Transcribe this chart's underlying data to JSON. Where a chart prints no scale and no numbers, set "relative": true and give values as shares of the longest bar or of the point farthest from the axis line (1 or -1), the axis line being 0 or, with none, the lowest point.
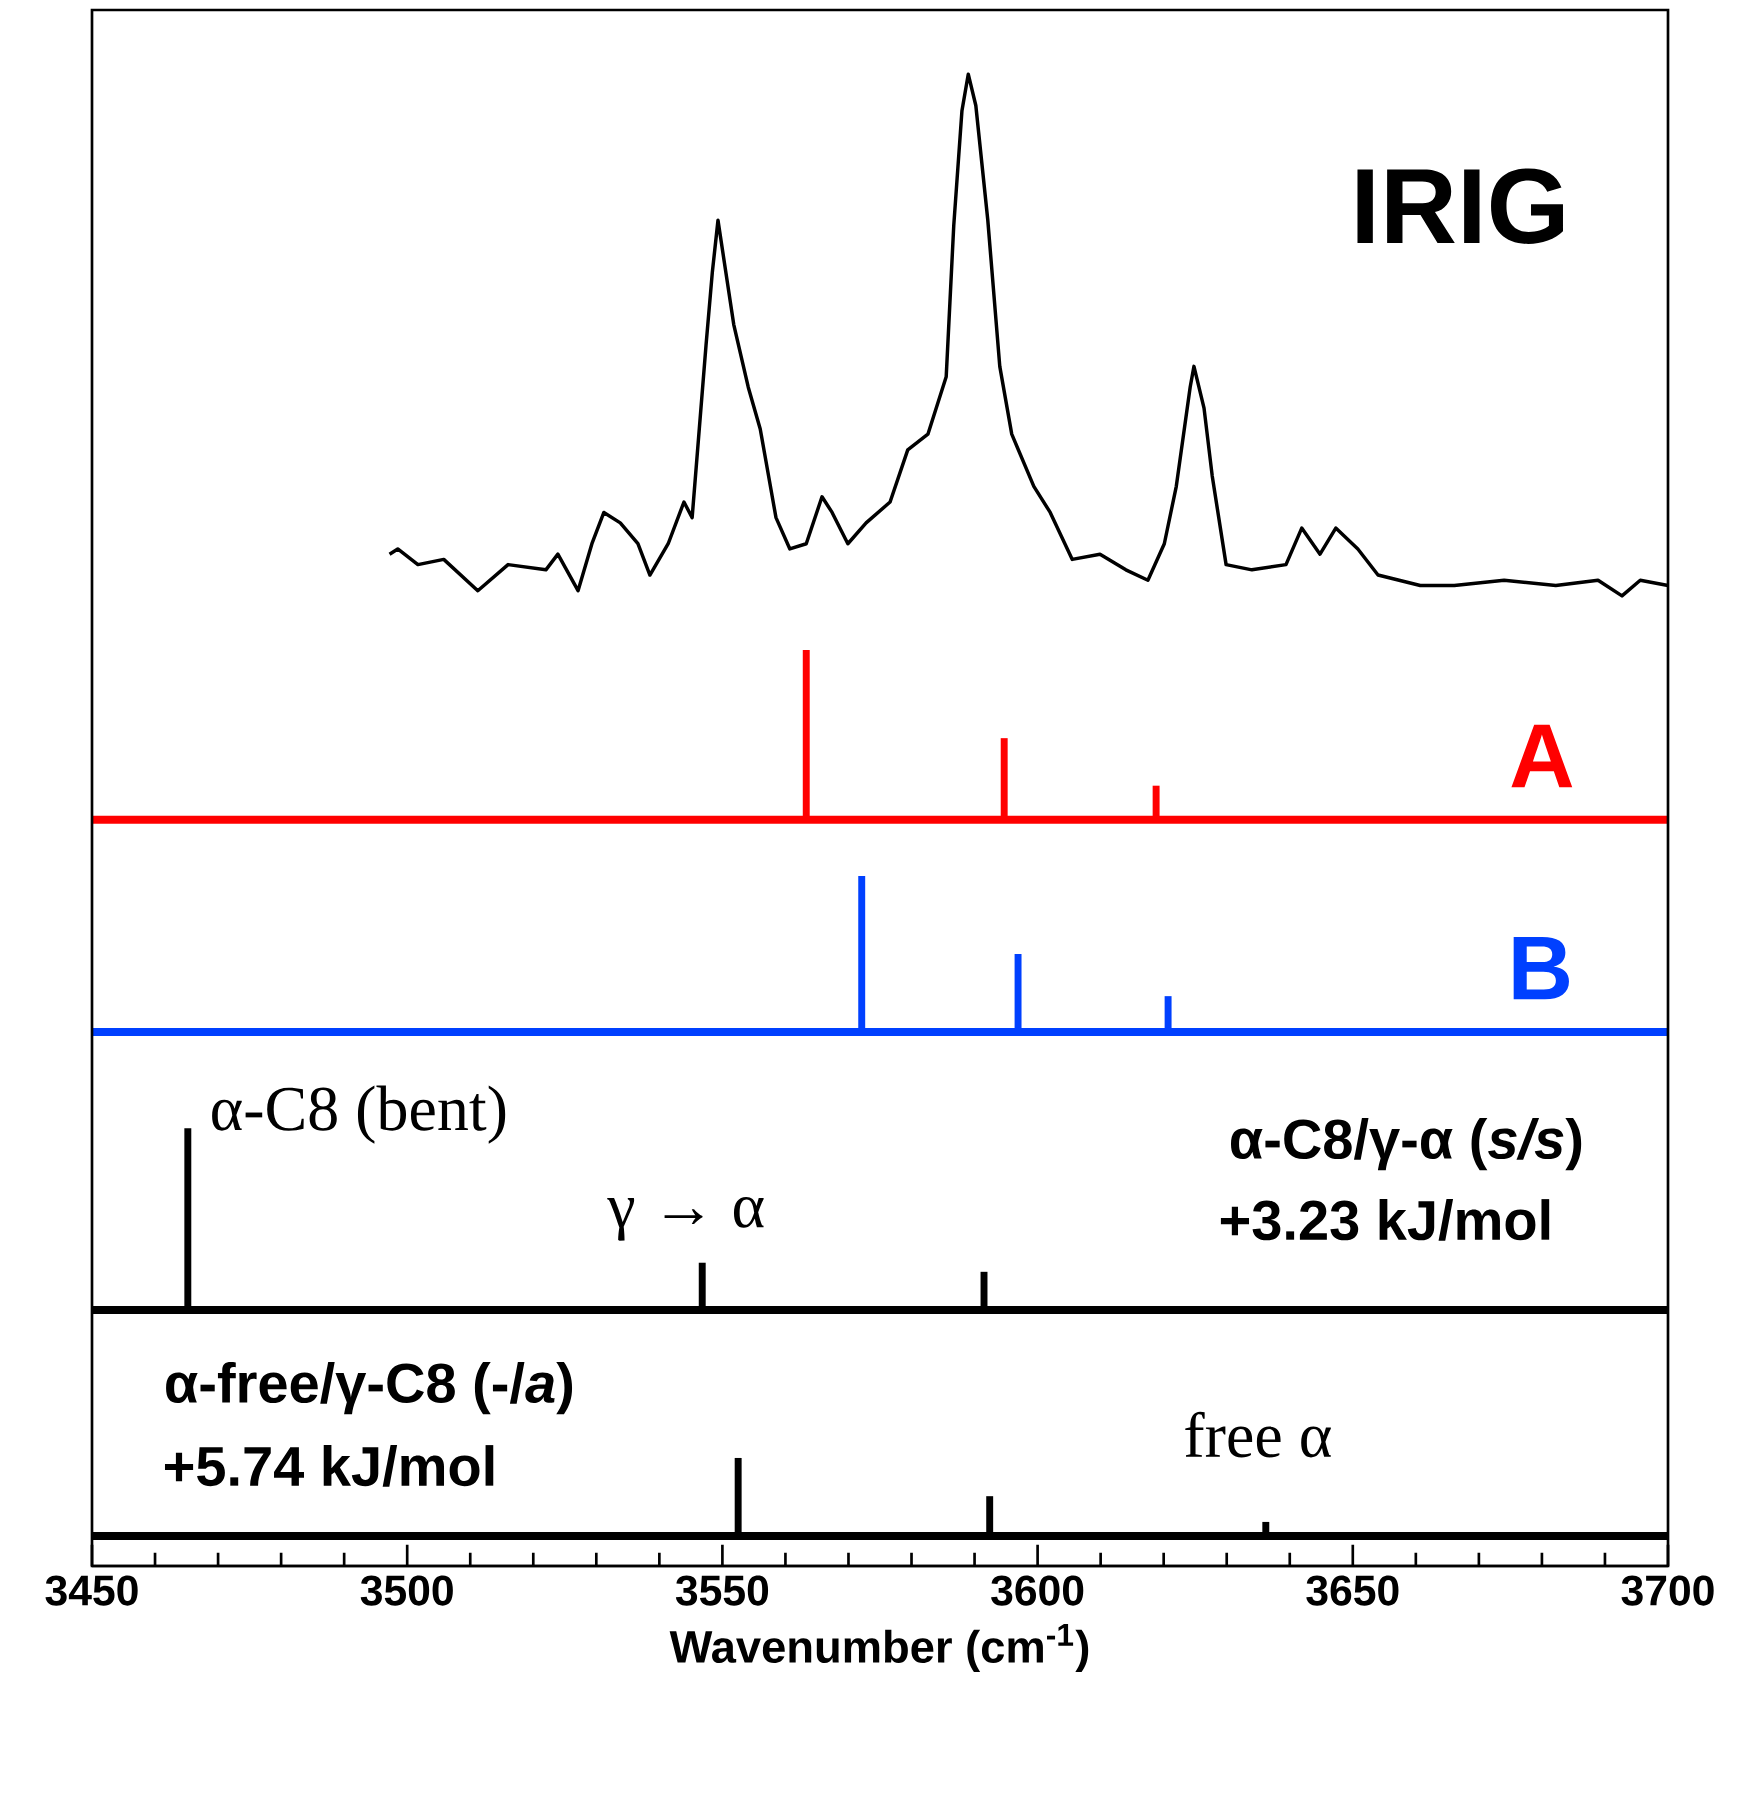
{
  "chart_data": [
    {
      "type": "line",
      "relative": true,
      "xlim": [
        3450,
        3700
      ],
      "tick_labels": false,
      "series": [
        {
          "name": "IRIG",
          "color": "#000000",
          "x": [
            3497.2,
            3498.5,
            3501.7,
            3505.8,
            3511.2,
            3516.0,
            3522.0,
            3523.9,
            3527.1,
            3529.3,
            3531.2,
            3533.8,
            3536.6,
            3538.5,
            3541.4,
            3543.9,
            3545.2,
            3547.4,
            3548.4,
            3549.3,
            3550.3,
            3551.8,
            3554.1,
            3556.0,
            3558.5,
            3560.7,
            3563.3,
            3565.8,
            3567.4,
            3569.9,
            3572.8,
            3576.6,
            3579.4,
            3582.6,
            3585.5,
            3586.7,
            3588.0,
            3589.0,
            3590.2,
            3592.1,
            3594.0,
            3595.9,
            3599.4,
            3602.0,
            3605.5,
            3609.9,
            3614.0,
            3617.5,
            3620.1,
            3622.0,
            3624.2,
            3624.8,
            3626.4,
            3627.7,
            3629.9,
            3634.0,
            3639.4,
            3641.9,
            3644.8,
            3647.3,
            3650.8,
            3654.0,
            3660.7,
            3666.1,
            3674.0,
            3682.2,
            3688.9,
            3692.7,
            3695.6,
            3700.0
          ],
          "values": [
            0.08,
            0.09,
            0.06,
            0.07,
            0.01,
            0.06,
            0.05,
            0.08,
            0.01,
            0.1,
            0.16,
            0.14,
            0.1,
            0.04,
            0.1,
            0.18,
            0.15,
            0.48,
            0.62,
            0.72,
            0.64,
            0.52,
            0.4,
            0.32,
            0.15,
            0.09,
            0.1,
            0.19,
            0.16,
            0.1,
            0.14,
            0.18,
            0.28,
            0.31,
            0.42,
            0.71,
            0.93,
            1.0,
            0.94,
            0.72,
            0.44,
            0.31,
            0.21,
            0.16,
            0.07,
            0.08,
            0.05,
            0.03,
            0.1,
            0.21,
            0.4,
            0.44,
            0.36,
            0.23,
            0.06,
            0.05,
            0.06,
            0.13,
            0.08,
            0.13,
            0.09,
            0.04,
            0.02,
            0.02,
            0.03,
            0.02,
            0.03,
            0.0,
            0.03,
            0.02
          ]
        }
      ]
    },
    {
      "type": "bar",
      "relative": true,
      "xlim": [
        3450,
        3700
      ],
      "tick_labels": false,
      "x": [
        3563.3,
        3594.7,
        3618.8
      ],
      "series": [
        {
          "name": "A",
          "color": "#ff0000",
          "values": [
            1,
            0.48,
            0.2
          ]
        }
      ]
    },
    {
      "type": "bar",
      "relative": true,
      "xlim": [
        3450,
        3700
      ],
      "tick_labels": false,
      "x": [
        3572.1,
        3596.9,
        3620.7
      ],
      "series": [
        {
          "name": "B",
          "color": "#0040ff",
          "values": [
            1,
            0.5,
            0.23
          ]
        }
      ]
    },
    {
      "type": "bar",
      "relative": true,
      "xlim": [
        3450,
        3700
      ],
      "tick_labels": false,
      "x": [
        3465.2,
        3546.8,
        3591.5
      ],
      "series": [
        {
          "name": "α-C8/γ-α (*s/s*)",
          "color": "#000000",
          "values": [
            1,
            0.26,
            0.21
          ]
        }
      ],
      "annotations": [
        {
          "text": "α-C8 (bent)",
          "x": 3465.2,
          "y": 1
        },
        {
          "text": "γ → α",
          "x": 3546.8,
          "y": 0.26
        },
        "+3.23 kJ/mol"
      ]
    },
    {
      "type": "bar",
      "relative": true,
      "xlim": [
        3450,
        3700
      ],
      "tick_labels": "x",
      "xticks": [
        3450,
        3500,
        3550,
        3600,
        3650,
        3700
      ],
      "xlabel": "Wavenumber (cm$^{-1}$)",
      "x": [
        3552.5,
        3592.4,
        3636.2
      ],
      "series": [
        {
          "name": "α-free/γ-C8 (-/*a*)",
          "color": "#000000",
          "values": [
            1,
            0.51,
            0.18
          ]
        }
      ],
      "ref_lines": [
        {
          "axis": "y",
          "value": 0,
          "color": "#000000"
        }
      ],
      "annotations": [
        "+5.74 kJ/mol",
        {
          "text": "free α",
          "x": 3636.2,
          "y": 0.18
        }
      ]
    }
  ]
}
